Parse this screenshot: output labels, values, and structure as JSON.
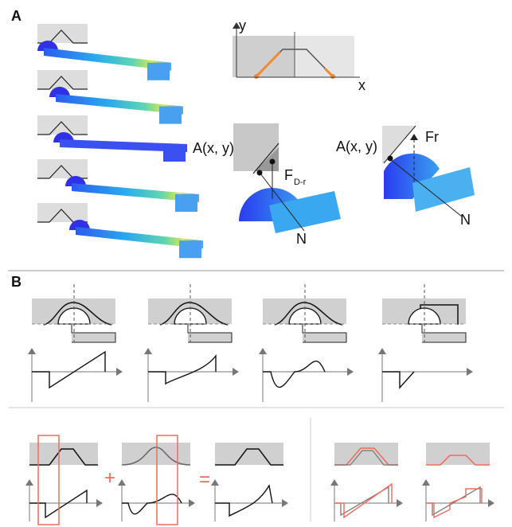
{
  "panel_a": {
    "label": "A",
    "axis_y": "y",
    "axis_x": "x",
    "left_diagram": {
      "point": "A(x, y)",
      "force": "F",
      "force_sub": "D-r",
      "normal": "N"
    },
    "right_diagram": {
      "point": "A(x, y)",
      "force": "Fr",
      "normal": "N"
    }
  },
  "panel_b": {
    "label": "B",
    "plus": "+",
    "equals": "="
  }
}
